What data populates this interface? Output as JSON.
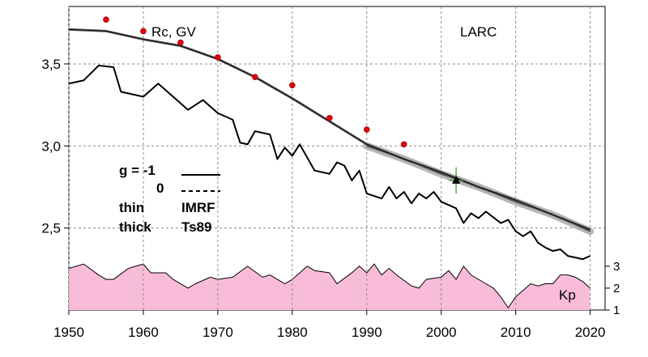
{
  "chart_data": {
    "type": "line",
    "title": "LARC",
    "ylabel": "Rc, GV",
    "xlim": [
      1950,
      2022
    ],
    "ylim": [
      2.0,
      3.85
    ],
    "x_ticks": [
      "1950",
      "1960",
      "1970",
      "1980",
      "1990",
      "2000",
      "2010",
      "2020"
    ],
    "y_ticks": [
      "3,5",
      "3,0",
      "2,5"
    ],
    "grid": true,
    "legend_block": {
      "g_label": "g  = -1",
      "g_zero": "0",
      "thin_label": "thin",
      "thin_model": "IMRF",
      "thick_label": "thick",
      "thick_model": "Ts89"
    },
    "series": [
      {
        "x": [
          1950,
          1955,
          1960,
          1965,
          1970,
          1975,
          1980,
          1985,
          1990,
          1995,
          2000,
          2005,
          2010,
          2015,
          2020
        ],
        "y": [
          3.71,
          3.7,
          3.65,
          3.61,
          3.53,
          3.42,
          3.29,
          3.15,
          3.01,
          2.92,
          2.84,
          2.75,
          2.67,
          2.58,
          2.49
        ]
      },
      {
        "x": [
          1950,
          1952,
          1954,
          1956,
          1957,
          1960,
          1962,
          1964,
          1966,
          1968,
          1970,
          1972,
          1973,
          1974,
          1975,
          1977,
          1978,
          1979,
          1980,
          1981,
          1983,
          1985,
          1986,
          1987,
          1988,
          1989,
          1990,
          1992,
          1993,
          1994,
          1995,
          1996,
          1997,
          1998,
          1999,
          2000,
          2002,
          2003,
          2004,
          2005,
          2006,
          2008,
          2009,
          2010,
          2011,
          2012,
          2013,
          2014,
          2015,
          2016,
          2017,
          2018,
          2019,
          2020
        ],
        "y": [
          3.38,
          3.4,
          3.49,
          3.48,
          3.33,
          3.3,
          3.38,
          3.3,
          3.22,
          3.28,
          3.2,
          3.16,
          3.02,
          3.01,
          3.09,
          3.07,
          2.92,
          2.99,
          2.94,
          3.01,
          2.85,
          2.83,
          2.9,
          2.88,
          2.79,
          2.85,
          2.71,
          2.68,
          2.75,
          2.68,
          2.72,
          2.65,
          2.71,
          2.68,
          2.72,
          2.66,
          2.62,
          2.53,
          2.59,
          2.56,
          2.6,
          2.53,
          2.55,
          2.48,
          2.45,
          2.48,
          2.41,
          2.38,
          2.36,
          2.37,
          2.33,
          2.32,
          2.31,
          2.33
        ]
      },
      {
        "x": [
          1990,
          1995,
          2000,
          2005,
          2010,
          2015,
          2020
        ],
        "y": [
          3.0,
          2.92,
          2.83,
          2.75,
          2.66,
          2.58,
          2.48
        ]
      }
    ],
    "points_red": {
      "x": [
        1955,
        1960,
        1965,
        1970,
        1975,
        1980,
        1985,
        1990,
        1995
      ],
      "y": [
        3.77,
        3.7,
        3.63,
        3.54,
        3.42,
        3.37,
        3.17,
        3.1,
        3.01
      ]
    },
    "point_triangle": {
      "x": 2002,
      "y": 2.79,
      "err_low": 2.71,
      "err_high": 2.87
    },
    "kp": {
      "label": "Kp",
      "ticks": [
        "3",
        "2",
        "1"
      ],
      "ylim": [
        1,
        3.4
      ],
      "x": [
        1950,
        1952,
        1954,
        1955,
        1956,
        1958,
        1960,
        1961,
        1963,
        1964,
        1966,
        1967,
        1969,
        1970,
        1972,
        1974,
        1976,
        1977,
        1979,
        1980,
        1982,
        1983,
        1985,
        1986,
        1988,
        1989,
        1990,
        1991,
        1992,
        1993,
        1994,
        1996,
        1997,
        1998,
        2000,
        2001,
        2002,
        2003,
        2004,
        2006,
        2007,
        2008,
        2009,
        2010,
        2011,
        2012,
        2013,
        2014,
        2015,
        2016,
        2017,
        2018,
        2019,
        2020
      ],
      "y": [
        2.9,
        3.1,
        2.6,
        2.4,
        2.4,
        2.9,
        3.1,
        2.7,
        2.7,
        2.4,
        2.0,
        2.2,
        2.5,
        2.4,
        2.5,
        3.0,
        2.5,
        2.6,
        2.2,
        2.4,
        3.0,
        2.8,
        2.7,
        2.2,
        2.7,
        3.0,
        2.7,
        3.1,
        2.6,
        2.9,
        2.6,
        2.1,
        2.0,
        2.4,
        2.5,
        2.8,
        2.4,
        3.0,
        2.6,
        2.2,
        2.0,
        1.6,
        1.1,
        1.6,
        1.9,
        2.2,
        2.1,
        2.2,
        2.2,
        2.6,
        2.6,
        2.5,
        2.3,
        2.0
      ]
    }
  }
}
